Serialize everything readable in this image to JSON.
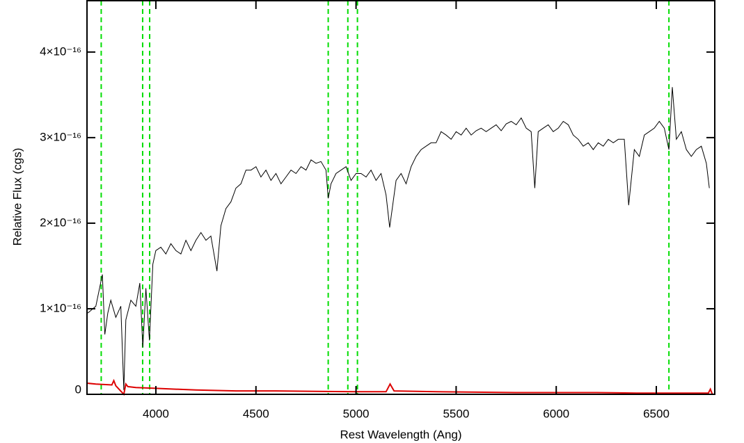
{
  "chart_data": {
    "type": "line",
    "xlabel": "Rest Wavelength (Ang)",
    "ylabel": "Relative Flux (cgs)",
    "xlim": [
      3656,
      6792
    ],
    "ylim": [
      0,
      4.6e-16
    ],
    "xticks": [
      4000,
      4500,
      5000,
      5500,
      6000,
      6500
    ],
    "yticks": [
      0,
      {
        "value": 1e-16,
        "label": "1×10⁻¹⁶"
      },
      {
        "value": 2e-16,
        "label": "2×10⁻¹⁶"
      },
      {
        "value": 3e-16,
        "label": "3×10⁻¹⁶"
      },
      {
        "value": 4e-16,
        "label": "4×10⁻¹⁶"
      }
    ],
    "vlines": {
      "color": "#00dd00",
      "x": [
        3727,
        3934,
        3969,
        4861,
        4959,
        5007,
        6563
      ]
    },
    "series": [
      {
        "color": "#000000",
        "x": [
          3660,
          3680,
          3700,
          3733,
          3745,
          3760,
          3775,
          3800,
          3825,
          3840,
          3850,
          3875,
          3900,
          3920,
          3935,
          3950,
          3968,
          3985,
          4000,
          4025,
          4050,
          4075,
          4100,
          4125,
          4150,
          4175,
          4200,
          4225,
          4250,
          4275,
          4305,
          4325,
          4350,
          4375,
          4400,
          4425,
          4450,
          4475,
          4500,
          4525,
          4550,
          4575,
          4600,
          4625,
          4650,
          4675,
          4700,
          4725,
          4750,
          4775,
          4800,
          4825,
          4850,
          4861,
          4875,
          4900,
          4925,
          4950,
          4975,
          5000,
          5025,
          5050,
          5075,
          5100,
          5125,
          5150,
          5168,
          5200,
          5225,
          5250,
          5275,
          5300,
          5325,
          5350,
          5375,
          5400,
          5425,
          5450,
          5475,
          5500,
          5525,
          5550,
          5575,
          5600,
          5625,
          5650,
          5675,
          5700,
          5725,
          5750,
          5775,
          5800,
          5825,
          5850,
          5875,
          5893,
          5910,
          5935,
          5960,
          5985,
          6010,
          6035,
          6060,
          6085,
          6110,
          6135,
          6160,
          6185,
          6210,
          6235,
          6260,
          6285,
          6310,
          6340,
          6362,
          6390,
          6415,
          6440,
          6465,
          6490,
          6515,
          6540,
          6563,
          6580,
          6600,
          6625,
          6650,
          6675,
          6700,
          6725,
          6750,
          6765
        ],
        "values": [
          9.5e-17,
          9.9e-17,
          1.03e-16,
          1.4e-16,
          7e-17,
          9.5e-17,
          1.1e-16,
          9e-17,
          1.03e-16,
          5e-18,
          8.7e-17,
          1.1e-16,
          1.03e-16,
          1.3e-16,
          5.5e-17,
          1.24e-16,
          6.3e-17,
          1.52e-16,
          1.68e-16,
          1.72e-16,
          1.64e-16,
          1.76e-16,
          1.68e-16,
          1.64e-16,
          1.8e-16,
          1.68e-16,
          1.8e-16,
          1.89e-16,
          1.8e-16,
          1.85e-16,
          1.44e-16,
          1.97e-16,
          2.17e-16,
          2.25e-16,
          2.41e-16,
          2.46e-16,
          2.62e-16,
          2.62e-16,
          2.66e-16,
          2.54e-16,
          2.62e-16,
          2.5e-16,
          2.58e-16,
          2.46e-16,
          2.54e-16,
          2.62e-16,
          2.58e-16,
          2.66e-16,
          2.62e-16,
          2.74e-16,
          2.7e-16,
          2.72e-16,
          2.62e-16,
          2.29e-16,
          2.46e-16,
          2.58e-16,
          2.62e-16,
          2.66e-16,
          2.5e-16,
          2.58e-16,
          2.58e-16,
          2.54e-16,
          2.62e-16,
          2.5e-16,
          2.58e-16,
          2.33e-16,
          1.95e-16,
          2.5e-16,
          2.58e-16,
          2.46e-16,
          2.66e-16,
          2.78e-16,
          2.86e-16,
          2.9e-16,
          2.94e-16,
          2.94e-16,
          3.07e-16,
          3.03e-16,
          2.98e-16,
          3.07e-16,
          3.03e-16,
          3.11e-16,
          3.03e-16,
          3.08e-16,
          3.11e-16,
          3.07e-16,
          3.11e-16,
          3.15e-16,
          3.08e-16,
          3.16e-16,
          3.19e-16,
          3.15e-16,
          3.23e-16,
          3.11e-16,
          3.07e-16,
          2.41e-16,
          3.07e-16,
          3.11e-16,
          3.15e-16,
          3.07e-16,
          3.11e-16,
          3.19e-16,
          3.15e-16,
          3.03e-16,
          2.98e-16,
          2.9e-16,
          2.94e-16,
          2.86e-16,
          2.94e-16,
          2.9e-16,
          2.98e-16,
          2.94e-16,
          2.98e-16,
          2.98e-16,
          2.21e-16,
          2.86e-16,
          2.78e-16,
          3.03e-16,
          3.07e-16,
          3.11e-16,
          3.19e-16,
          3.11e-16,
          2.86e-16,
          3.59e-16,
          2.98e-16,
          3.07e-16,
          2.86e-16,
          2.78e-16,
          2.86e-16,
          2.9e-16,
          2.7e-16,
          2.41e-16
        ]
      },
      {
        "color": "#dd0000",
        "x": [
          3656,
          3700,
          3780,
          3790,
          3800,
          3840,
          3850,
          3860,
          3900,
          4000,
          4200,
          4400,
          4600,
          4800,
          5000,
          5150,
          5170,
          5190,
          5400,
          5600,
          5800,
          6000,
          6200,
          6400,
          6600,
          6760,
          6770,
          6780
        ],
        "values": [
          1.3e-17,
          1.2e-17,
          1.1e-17,
          1.6e-17,
          1e-17,
          0,
          1.2e-17,
          9e-18,
          8e-18,
          7e-18,
          5e-18,
          4e-18,
          4e-18,
          3.5e-18,
          3e-18,
          3e-18,
          1.2e-17,
          4e-18,
          3e-18,
          2.5e-18,
          2e-18,
          2e-18,
          2e-18,
          1.5e-18,
          1.5e-18,
          1.5e-18,
          6e-18,
          0
        ]
      }
    ]
  }
}
